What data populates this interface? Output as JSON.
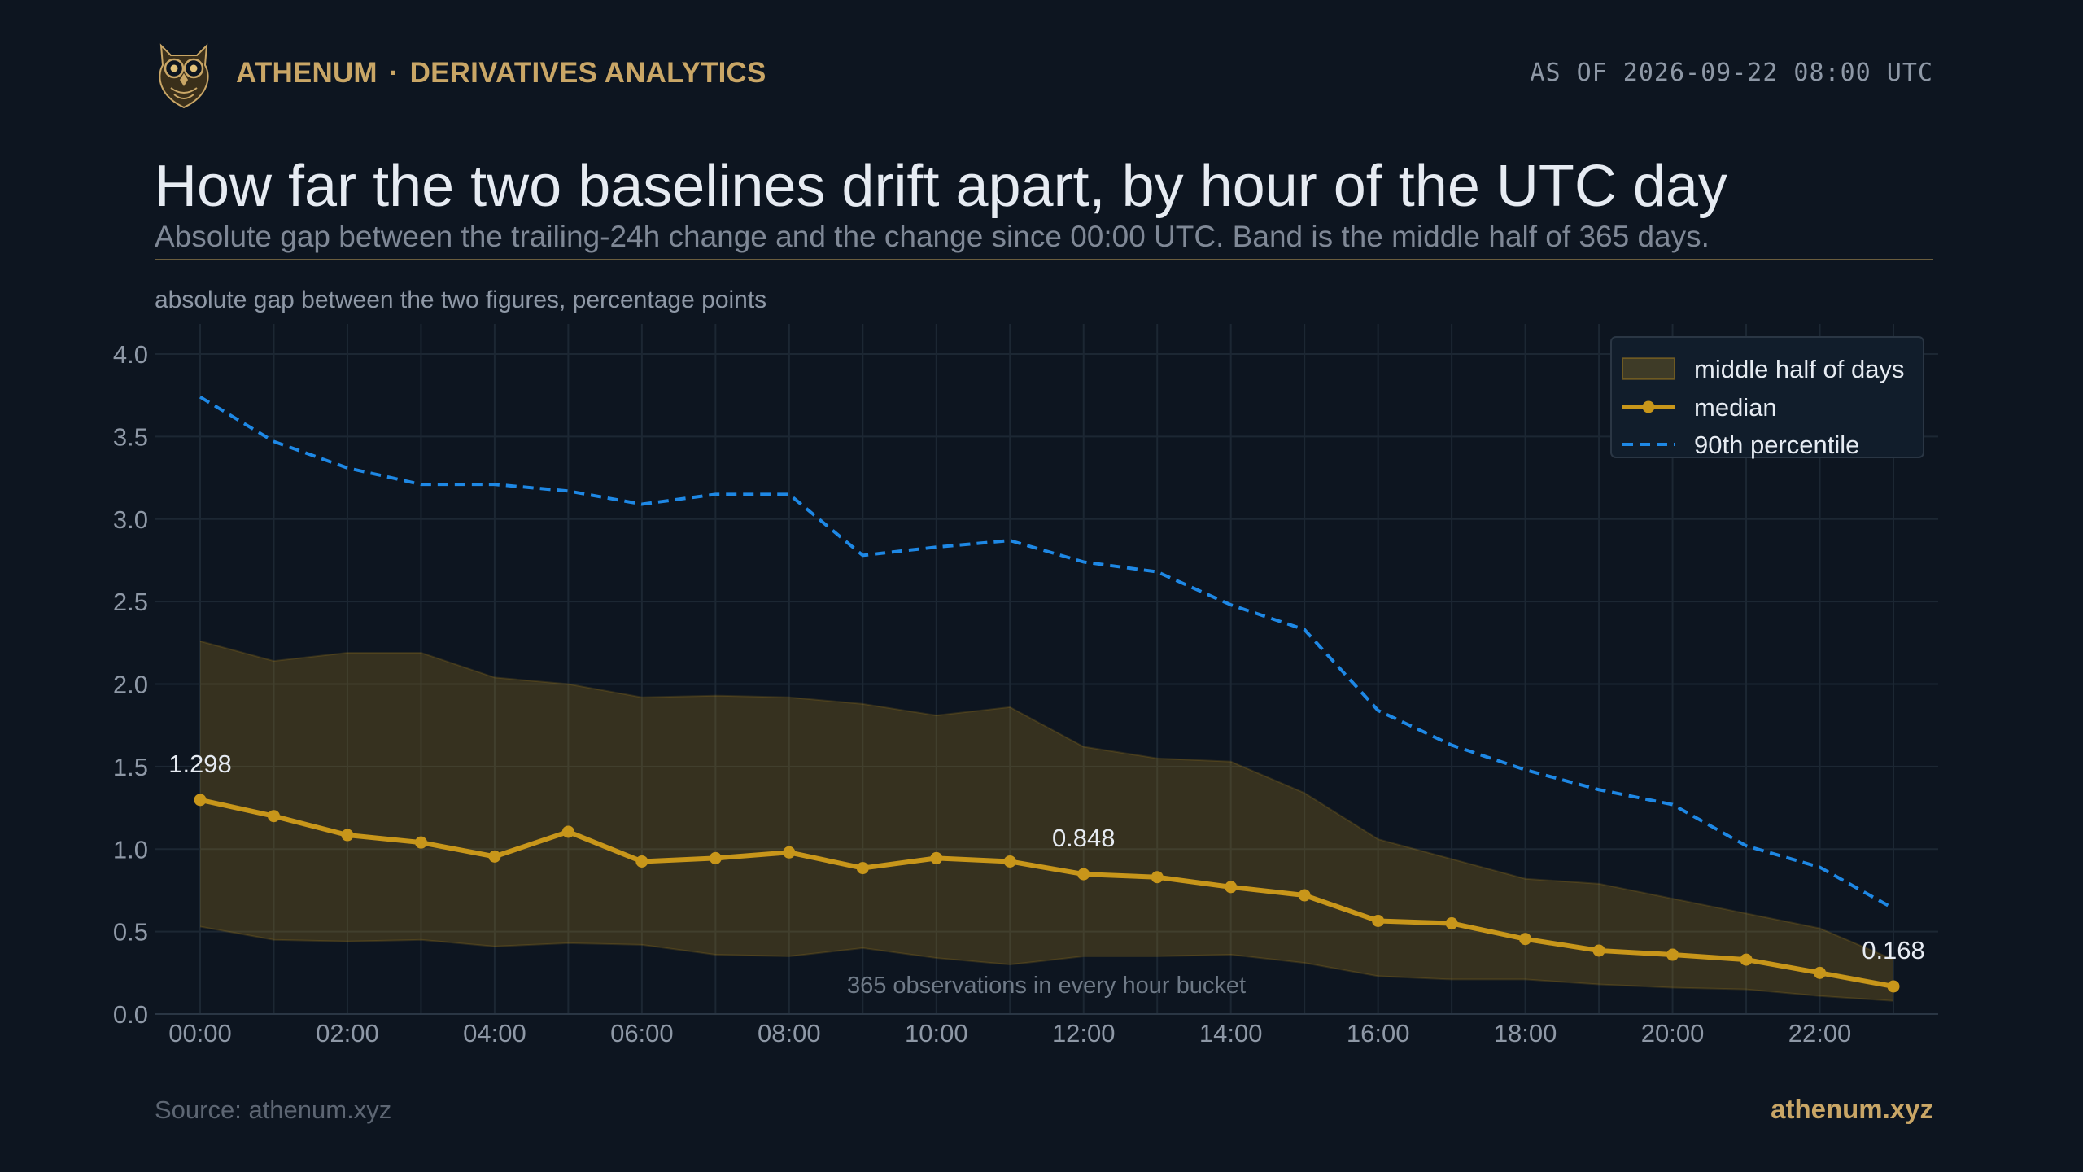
{
  "header": {
    "brand": "ATHENUM",
    "separator": "·",
    "section": "DERIVATIVES ANALYTICS",
    "as_of": "AS OF 2026-09-22 08:00 UTC",
    "logo_icon": "owl-icon"
  },
  "title": "How far the two baselines drift apart, by hour of the UTC day",
  "subtitle": "Absolute gap between the trailing-24h change and the change since 00:00 UTC. Band is the middle half of 365 days.",
  "footer": {
    "source": "Source: athenum.xyz",
    "site": "athenum.xyz"
  },
  "colors": {
    "background": "#0d1520",
    "accent_gold": "#c9a666",
    "median": "#c8961a",
    "band": "#3a3520",
    "p90": "#1e88e5",
    "grid": "#1c2733"
  },
  "chart_data": {
    "type": "line",
    "ylabel": "absolute gap between the two figures, percentage points",
    "ylim": [
      0,
      4.0
    ],
    "yticks": [
      "0.0",
      "0.5",
      "1.0",
      "1.5",
      "2.0",
      "2.5",
      "3.0",
      "3.5",
      "4.0"
    ],
    "xticks": [
      "00:00",
      "02:00",
      "04:00",
      "06:00",
      "08:00",
      "10:00",
      "12:00",
      "14:00",
      "16:00",
      "18:00",
      "20:00",
      "22:00"
    ],
    "x_hours": [
      0,
      1,
      2,
      3,
      4,
      5,
      6,
      7,
      8,
      9,
      10,
      11,
      12,
      13,
      14,
      15,
      16,
      17,
      18,
      19,
      20,
      21,
      22,
      23
    ],
    "grid": true,
    "legend_position": "top-right",
    "band": {
      "name": "middle half of days",
      "lower": [
        0.53,
        0.45,
        0.44,
        0.45,
        0.41,
        0.43,
        0.42,
        0.36,
        0.35,
        0.4,
        0.34,
        0.3,
        0.35,
        0.35,
        0.36,
        0.31,
        0.23,
        0.21,
        0.21,
        0.18,
        0.16,
        0.15,
        0.11,
        0.08
      ],
      "upper": [
        2.26,
        2.14,
        2.19,
        2.19,
        2.04,
        2.0,
        1.92,
        1.93,
        1.92,
        1.88,
        1.81,
        1.86,
        1.62,
        1.55,
        1.53,
        1.34,
        1.06,
        0.94,
        0.82,
        0.79,
        0.7,
        0.61,
        0.52,
        0.33
      ]
    },
    "series": [
      {
        "name": "median",
        "values": [
          1.298,
          1.2,
          1.085,
          1.04,
          0.955,
          1.105,
          0.925,
          0.945,
          0.98,
          0.885,
          0.945,
          0.925,
          0.848,
          0.83,
          0.77,
          0.72,
          0.565,
          0.55,
          0.455,
          0.385,
          0.36,
          0.33,
          0.25,
          0.168
        ]
      },
      {
        "name": "90th percentile",
        "values": [
          3.74,
          3.47,
          3.31,
          3.21,
          3.21,
          3.17,
          3.09,
          3.15,
          3.15,
          2.78,
          2.83,
          2.87,
          2.74,
          2.68,
          2.48,
          2.33,
          1.84,
          1.63,
          1.48,
          1.36,
          1.27,
          1.02,
          0.89,
          0.64
        ]
      }
    ],
    "data_labels": [
      {
        "hour": 0,
        "text": "1.298"
      },
      {
        "hour": 12,
        "text": "0.848"
      },
      {
        "hour": 23,
        "text": "0.168"
      }
    ],
    "annotation": "365 observations in every hour bucket"
  }
}
